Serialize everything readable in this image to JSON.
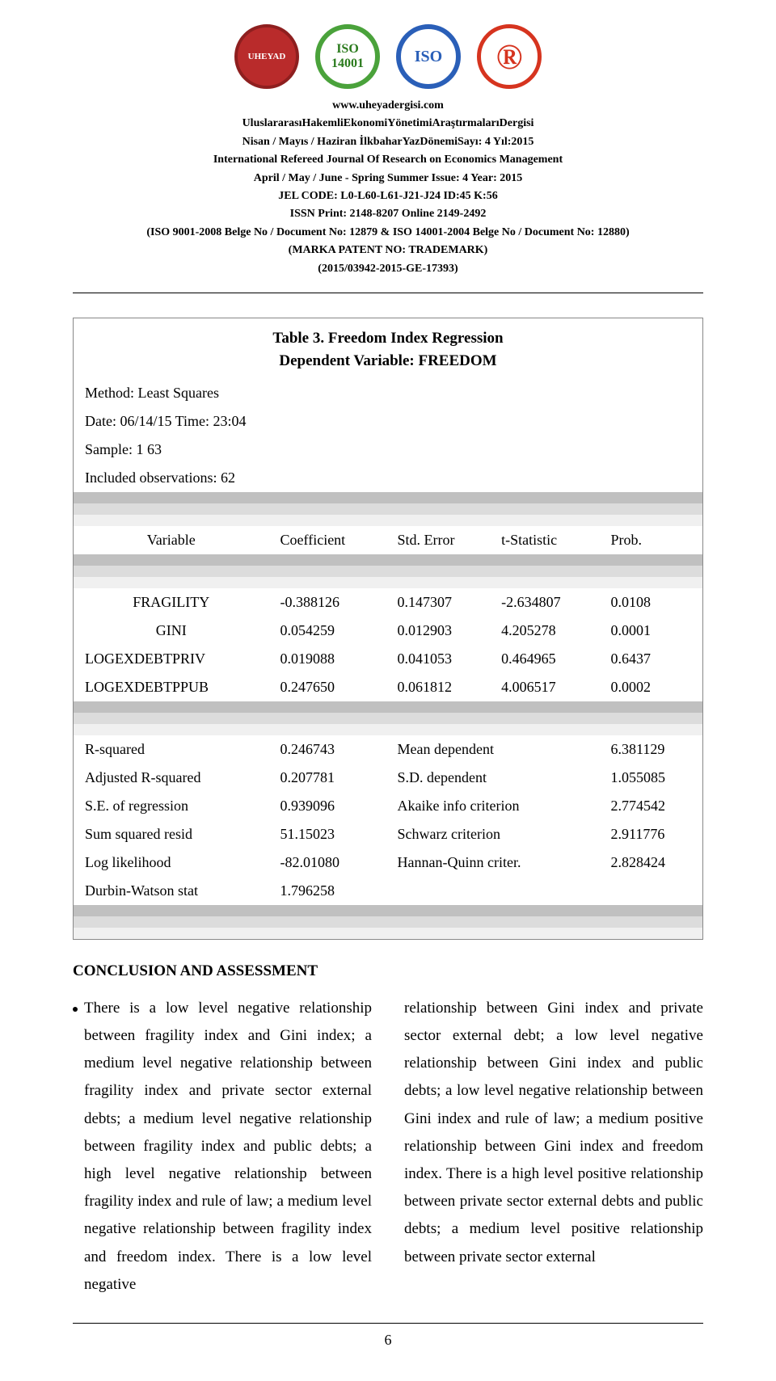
{
  "header": {
    "url": "www.uheyadergisi.com",
    "lines": [
      "UluslararasıHakemliEkonomiYönetimiAraştırmalarıDergisi",
      "Nisan / Mayıs / Haziran İlkbaharYazDönemiSayı: 4 Yıl:2015",
      "International Refereed Journal Of Research on Economics Management",
      "April / May / June - Spring Summer Issue: 4 Year: 2015",
      "JEL CODE: L0-L60-L61-J21-J24 ID:45 K:56",
      "ISSN Print: 2148-8207 Online 2149-2492",
      "(ISO 9001-2008 Belge No / Document No: 12879 & ISO 14001-2004 Belge No / Document No: 12880)",
      "(MARKA PATENT NO: TRADEMARK)",
      "(2015/03942-2015-GE-17393)"
    ]
  },
  "logos": {
    "l1": "UHEYAD",
    "l2_top": "ISO",
    "l2_bot": "14001",
    "l3": "ISO",
    "l4": "®",
    "colors": {
      "l1_bg": "#b92b2b",
      "l1_fg": "#ffffff",
      "l2_border": "#4aa23b",
      "l2_fg": "#2a7a1c",
      "l3_border": "#2a5fb8",
      "l3_fg": "#2a5fb8",
      "l4_fg": "#d6341f"
    }
  },
  "table": {
    "title_line1": "Table 3. Freedom Index Regression",
    "title_line2": "Dependent Variable: FREEDOM",
    "meta": {
      "method": "Method: Least Squares",
      "date": "Date: 06/14/15   Time: 23:04",
      "sample": "Sample: 1 63",
      "included": "Included observations: 62"
    },
    "head": {
      "c1": "Variable",
      "c2": "Coefficient",
      "c3": "Std. Error",
      "c4": "t-Statistic",
      "c5": "Prob."
    },
    "vars": [
      {
        "name": "FRAGILITY",
        "coef": "-0.388126",
        "se": "0.147307",
        "t": "-2.634807",
        "p": "0.0108"
      },
      {
        "name": "GINI",
        "coef": "0.054259",
        "se": "0.012903",
        "t": "4.205278",
        "p": "0.0001"
      },
      {
        "name": "LOGEXDEBTPRIV",
        "coef": "0.019088",
        "se": "0.041053",
        "t": "0.464965",
        "p": "0.6437"
      },
      {
        "name": "LOGEXDEBTPPUB",
        "coef": "0.247650",
        "se": "0.061812",
        "t": "4.006517",
        "p": "0.0002"
      }
    ],
    "stats": [
      {
        "l": "R-squared",
        "lv": "0.246743",
        "r": "Mean dependent",
        "rv": "6.381129"
      },
      {
        "l": "Adjusted R-squared",
        "lv": "0.207781",
        "r": "S.D. dependent",
        "rv": "1.055085"
      },
      {
        "l": "S.E. of regression",
        "lv": "0.939096",
        "r": "Akaike info criterion",
        "rv": "2.774542"
      },
      {
        "l": "Sum squared resid",
        "lv": "51.15023",
        "r": "Schwarz criterion",
        "rv": "2.911776"
      },
      {
        "l": "Log likelihood",
        "lv": "-82.01080",
        "r": "Hannan-Quinn criter.",
        "rv": "2.828424"
      },
      {
        "l": "Durbin-Watson stat",
        "lv": "1.796258",
        "r": "",
        "rv": ""
      }
    ]
  },
  "section_title": "CONCLUSION AND ASSESSMENT",
  "body": {
    "left": "There is a low level negative relationship between fragility index and Gini index; a medium level negative relationship between fragility index and private sector external debts; a medium level negative relationship between fragility index and public debts; a high level negative relationship between fragility index and rule of law; a medium level negative relationship between fragility index and freedom index. There is a low level negative",
    "right": "relationship between Gini index and private sector external debt; a low level negative relationship between Gini index and public debts; a low level negative relationship between Gini index and rule of law; a medium positive relationship between Gini index and freedom index. There is a high level positive relationship between private sector external debts and public debts; a medium level positive relationship between private sector external"
  },
  "page_number": "6"
}
